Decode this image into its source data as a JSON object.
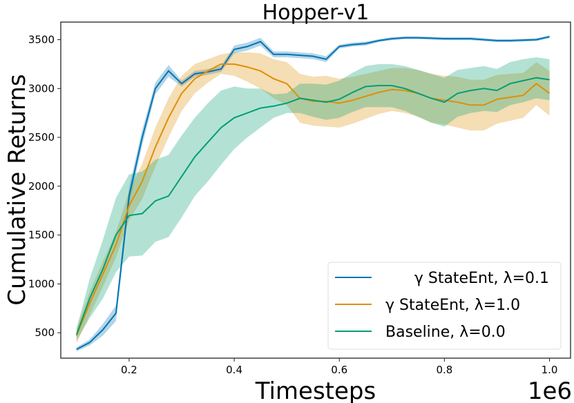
{
  "chart_data": {
    "type": "line",
    "title": "Hopper-v1",
    "xlabel": "Timesteps",
    "ylabel": "Cumulative Returns",
    "x_offset_text": "1e6",
    "xlim": [
      0.07,
      1.04
    ],
    "ylim": [
      240,
      3680
    ],
    "xticks": [
      0.2,
      0.4,
      0.6,
      0.8,
      1.0
    ],
    "xtick_labels": [
      "0.2",
      "0.4",
      "0.6",
      "0.8",
      "1.0"
    ],
    "yticks": [
      500,
      1000,
      1500,
      2000,
      2500,
      3000,
      3500
    ],
    "ytick_labels": [
      "500",
      "1000",
      "1500",
      "2000",
      "2500",
      "3000",
      "3500"
    ],
    "grid": false,
    "legend_placement": "lower-right",
    "x": [
      0.1,
      0.125,
      0.15,
      0.175,
      0.2,
      0.225,
      0.25,
      0.275,
      0.3,
      0.325,
      0.35,
      0.375,
      0.4,
      0.425,
      0.45,
      0.475,
      0.5,
      0.525,
      0.55,
      0.575,
      0.6,
      0.625,
      0.65,
      0.675,
      0.7,
      0.725,
      0.75,
      0.775,
      0.8,
      0.825,
      0.85,
      0.875,
      0.9,
      0.925,
      0.95,
      0.975,
      1.0
    ],
    "series": [
      {
        "name": "γ StateEnt, λ=0.1",
        "color": "#0173b2",
        "values": [
          330,
          400,
          530,
          700,
          1900,
          2500,
          3000,
          3180,
          3050,
          3150,
          3170,
          3200,
          3400,
          3430,
          3480,
          3350,
          3350,
          3340,
          3330,
          3300,
          3430,
          3450,
          3460,
          3490,
          3510,
          3520,
          3520,
          3515,
          3510,
          3510,
          3510,
          3500,
          3490,
          3490,
          3495,
          3500,
          3530
        ],
        "std": [
          20,
          30,
          60,
          80,
          90,
          80,
          60,
          60,
          30,
          30,
          30,
          30,
          40,
          40,
          40,
          30,
          30,
          30,
          30,
          30,
          20,
          20,
          20,
          15,
          15,
          15,
          15,
          15,
          15,
          15,
          15,
          15,
          15,
          15,
          15,
          15,
          15
        ]
      },
      {
        "name": "γ StateEnt, λ=1.0",
        "color": "#de8f05",
        "values": [
          470,
          800,
          1100,
          1400,
          1800,
          2050,
          2400,
          2700,
          2950,
          3100,
          3180,
          3250,
          3250,
          3220,
          3180,
          3100,
          3050,
          2900,
          2870,
          2870,
          2850,
          2880,
          2920,
          2960,
          2990,
          2980,
          2950,
          2900,
          2880,
          2860,
          2830,
          2830,
          2890,
          2910,
          2930,
          3050,
          2950
        ],
        "std": [
          80,
          120,
          130,
          130,
          150,
          180,
          200,
          200,
          180,
          150,
          120,
          100,
          120,
          150,
          180,
          200,
          220,
          250,
          250,
          260,
          250,
          240,
          230,
          220,
          220,
          230,
          240,
          250,
          250,
          260,
          260,
          260,
          250,
          240,
          230,
          220,
          230
        ]
      },
      {
        "name": "Baseline, λ=0.0",
        "color": "#029e73",
        "values": [
          480,
          850,
          1150,
          1500,
          1700,
          1720,
          1850,
          1900,
          2100,
          2300,
          2450,
          2600,
          2700,
          2750,
          2800,
          2820,
          2850,
          2900,
          2880,
          2860,
          2890,
          2960,
          3020,
          3030,
          3030,
          3000,
          2950,
          2900,
          2860,
          2950,
          2980,
          3000,
          2980,
          3050,
          3080,
          3110,
          3090
        ],
        "std": [
          60,
          200,
          300,
          380,
          420,
          430,
          420,
          420,
          420,
          400,
          400,
          380,
          320,
          250,
          200,
          120,
          100,
          150,
          170,
          180,
          190,
          200,
          210,
          220,
          220,
          230,
          240,
          250,
          250,
          240,
          230,
          230,
          220,
          220,
          220,
          210,
          210
        ]
      }
    ]
  }
}
